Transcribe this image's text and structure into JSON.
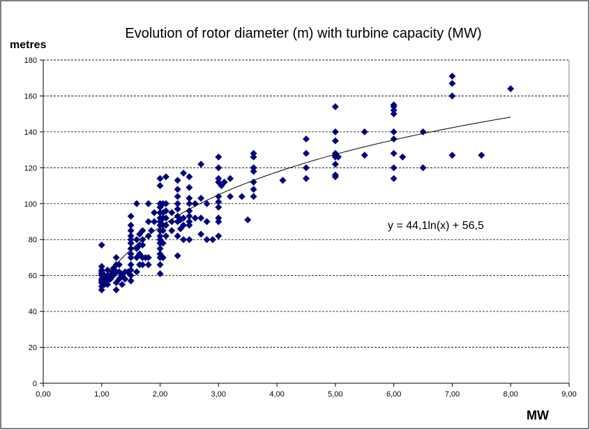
{
  "chart_data": {
    "type": "scatter",
    "title": "Evolution of rotor diameter (m) with turbine capacity (MW)",
    "ylabel": "metres",
    "xlabel": "MW",
    "xlim": [
      0,
      9
    ],
    "ylim": [
      0,
      180
    ],
    "x_ticks": [
      "0,00",
      "1,00",
      "2,00",
      "3,00",
      "4,00",
      "5,00",
      "6,00",
      "7,00",
      "8,00",
      "9,00"
    ],
    "y_ticks": [
      "0",
      "20",
      "40",
      "60",
      "80",
      "100",
      "120",
      "140",
      "160",
      "180"
    ],
    "grid": "horizontal dashed",
    "marker_color": "#00007f",
    "trendline": {
      "type": "logarithmic",
      "a": 44.1,
      "b": 56.5,
      "x_range": [
        1,
        8
      ],
      "equation_label": "y = 44,1ln(x) + 56,5"
    },
    "points": [
      [
        1.0,
        52
      ],
      [
        1.0,
        54
      ],
      [
        1.0,
        56
      ],
      [
        1.0,
        57
      ],
      [
        1.0,
        58
      ],
      [
        1.0,
        60
      ],
      [
        1.0,
        61
      ],
      [
        1.0,
        62
      ],
      [
        1.0,
        63
      ],
      [
        1.0,
        65
      ],
      [
        1.0,
        77
      ],
      [
        1.05,
        55
      ],
      [
        1.05,
        58
      ],
      [
        1.05,
        60
      ],
      [
        1.1,
        55
      ],
      [
        1.1,
        57
      ],
      [
        1.1,
        60
      ],
      [
        1.1,
        63
      ],
      [
        1.15,
        58
      ],
      [
        1.15,
        60
      ],
      [
        1.2,
        60
      ],
      [
        1.2,
        62
      ],
      [
        1.2,
        64
      ],
      [
        1.25,
        52
      ],
      [
        1.25,
        56
      ],
      [
        1.25,
        62
      ],
      [
        1.25,
        66
      ],
      [
        1.25,
        70
      ],
      [
        1.3,
        58
      ],
      [
        1.3,
        62
      ],
      [
        1.3,
        66
      ],
      [
        1.35,
        55
      ],
      [
        1.35,
        60
      ],
      [
        1.4,
        58
      ],
      [
        1.4,
        62
      ],
      [
        1.45,
        62
      ],
      [
        1.5,
        57
      ],
      [
        1.5,
        60
      ],
      [
        1.5,
        63
      ],
      [
        1.5,
        66
      ],
      [
        1.5,
        70
      ],
      [
        1.5,
        72
      ],
      [
        1.5,
        75
      ],
      [
        1.5,
        78
      ],
      [
        1.5,
        80
      ],
      [
        1.5,
        82
      ],
      [
        1.5,
        85
      ],
      [
        1.5,
        88
      ],
      [
        1.5,
        93
      ],
      [
        1.6,
        62
      ],
      [
        1.6,
        70
      ],
      [
        1.6,
        75
      ],
      [
        1.6,
        80
      ],
      [
        1.6,
        100
      ],
      [
        1.65,
        66
      ],
      [
        1.65,
        72
      ],
      [
        1.65,
        77
      ],
      [
        1.65,
        83
      ],
      [
        1.7,
        66
      ],
      [
        1.7,
        70
      ],
      [
        1.7,
        77
      ],
      [
        1.7,
        80
      ],
      [
        1.7,
        85
      ],
      [
        1.75,
        70
      ],
      [
        1.8,
        66
      ],
      [
        1.8,
        70
      ],
      [
        1.8,
        82
      ],
      [
        1.8,
        90
      ],
      [
        1.8,
        100
      ],
      [
        1.85,
        85
      ],
      [
        1.9,
        90
      ],
      [
        1.9,
        95
      ],
      [
        2.0,
        61
      ],
      [
        2.0,
        66
      ],
      [
        2.0,
        70
      ],
      [
        2.0,
        72
      ],
      [
        2.0,
        75
      ],
      [
        2.0,
        78
      ],
      [
        2.0,
        80
      ],
      [
        2.0,
        82
      ],
      [
        2.0,
        85
      ],
      [
        2.0,
        88
      ],
      [
        2.0,
        90
      ],
      [
        2.0,
        92
      ],
      [
        2.0,
        95
      ],
      [
        2.0,
        98
      ],
      [
        2.0,
        100
      ],
      [
        2.0,
        110
      ],
      [
        2.0,
        114
      ],
      [
        2.05,
        70
      ],
      [
        2.05,
        78
      ],
      [
        2.05,
        85
      ],
      [
        2.05,
        88
      ],
      [
        2.05,
        92
      ],
      [
        2.05,
        95
      ],
      [
        2.05,
        100
      ],
      [
        2.1,
        82
      ],
      [
        2.1,
        88
      ],
      [
        2.1,
        92
      ],
      [
        2.1,
        96
      ],
      [
        2.1,
        100
      ],
      [
        2.1,
        115
      ],
      [
        2.2,
        85
      ],
      [
        2.2,
        90
      ],
      [
        2.2,
        95
      ],
      [
        2.3,
        71
      ],
      [
        2.3,
        82
      ],
      [
        2.3,
        90
      ],
      [
        2.3,
        93
      ],
      [
        2.3,
        97
      ],
      [
        2.3,
        100
      ],
      [
        2.3,
        104
      ],
      [
        2.3,
        108
      ],
      [
        2.3,
        113
      ],
      [
        2.35,
        86
      ],
      [
        2.35,
        91
      ],
      [
        2.4,
        80
      ],
      [
        2.4,
        88
      ],
      [
        2.4,
        92
      ],
      [
        2.4,
        117
      ],
      [
        2.5,
        80
      ],
      [
        2.5,
        88
      ],
      [
        2.5,
        90
      ],
      [
        2.5,
        93
      ],
      [
        2.5,
        96
      ],
      [
        2.5,
        100
      ],
      [
        2.5,
        103
      ],
      [
        2.5,
        109
      ],
      [
        2.5,
        115
      ],
      [
        2.6,
        92
      ],
      [
        2.6,
        100
      ],
      [
        2.7,
        83
      ],
      [
        2.7,
        92
      ],
      [
        2.7,
        103
      ],
      [
        2.7,
        122
      ],
      [
        2.8,
        80
      ],
      [
        2.8,
        90
      ],
      [
        2.8,
        100
      ],
      [
        2.9,
        80
      ],
      [
        3.0,
        82
      ],
      [
        3.0,
        90
      ],
      [
        3.0,
        92
      ],
      [
        3.0,
        98
      ],
      [
        3.0,
        101
      ],
      [
        3.0,
        104
      ],
      [
        3.0,
        112
      ],
      [
        3.0,
        114
      ],
      [
        3.0,
        120
      ],
      [
        3.0,
        126
      ],
      [
        3.05,
        110
      ],
      [
        3.1,
        112
      ],
      [
        3.2,
        104
      ],
      [
        3.2,
        114
      ],
      [
        3.4,
        104
      ],
      [
        3.5,
        91
      ],
      [
        3.6,
        104
      ],
      [
        3.6,
        108
      ],
      [
        3.6,
        112
      ],
      [
        3.6,
        118
      ],
      [
        3.6,
        120
      ],
      [
        3.6,
        126
      ],
      [
        3.6,
        128
      ],
      [
        4.1,
        113
      ],
      [
        4.5,
        114
      ],
      [
        4.5,
        120
      ],
      [
        4.5,
        128
      ],
      [
        4.5,
        136
      ],
      [
        5.0,
        115
      ],
      [
        5.0,
        116
      ],
      [
        5.0,
        122
      ],
      [
        5.0,
        126
      ],
      [
        5.0,
        127
      ],
      [
        5.0,
        128
      ],
      [
        5.0,
        135
      ],
      [
        5.0,
        140
      ],
      [
        5.0,
        154
      ],
      [
        5.05,
        126
      ],
      [
        5.5,
        127
      ],
      [
        5.5,
        140
      ],
      [
        6.0,
        114
      ],
      [
        6.0,
        120
      ],
      [
        6.0,
        128
      ],
      [
        6.0,
        136
      ],
      [
        6.0,
        140
      ],
      [
        6.0,
        150
      ],
      [
        6.0,
        152
      ],
      [
        6.0,
        154
      ],
      [
        6.0,
        155
      ],
      [
        6.15,
        126
      ],
      [
        6.5,
        120
      ],
      [
        6.5,
        140
      ],
      [
        7.0,
        127
      ],
      [
        7.0,
        160
      ],
      [
        7.0,
        167
      ],
      [
        7.0,
        171
      ],
      [
        7.5,
        127
      ],
      [
        8.0,
        164
      ]
    ]
  }
}
